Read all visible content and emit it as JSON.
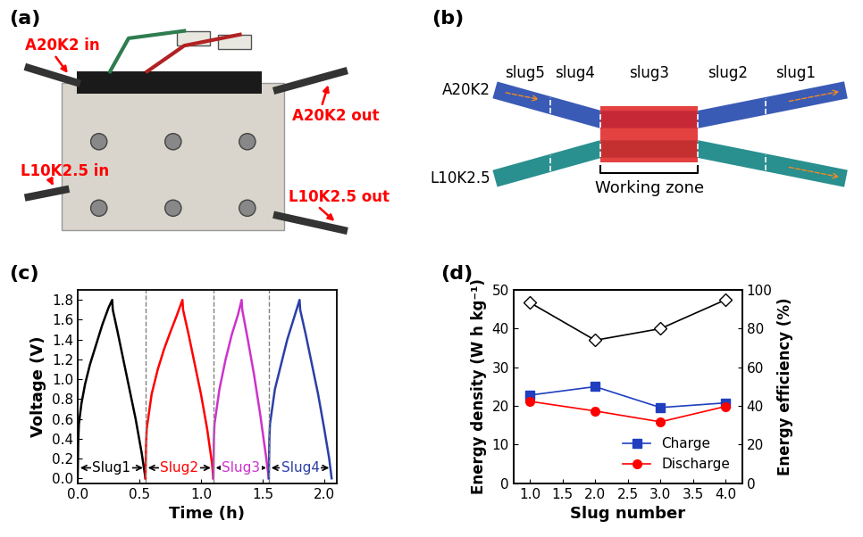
{
  "photo": {
    "panel": "(a)",
    "labels": [
      "A20K2 in",
      "A20K2 out",
      "L10K2.5 in",
      "L10K2.5 out"
    ]
  },
  "diagram": {
    "panel": "(b)",
    "channels": [
      "A20K2",
      "L10K2.5"
    ],
    "slugs": [
      "slug5",
      "slug4",
      "slug3",
      "slug2",
      "slug1"
    ],
    "zone": "Working zone"
  },
  "chart_data": [
    {
      "panel": "(c)",
      "type": "line",
      "x_label": "Time (h)",
      "y_label": "Voltage (V)",
      "xlim": [
        0,
        2.1
      ],
      "xticks": [
        {
          "value": 0,
          "label": "0.0"
        },
        0.5,
        {
          "value": 1,
          "label": "1.0"
        },
        1.5,
        {
          "value": 2,
          "label": "2.0"
        }
      ],
      "ylim": [
        -0.05,
        1.9
      ],
      "yticks": [
        {
          "value": 0,
          "label": "0.0"
        },
        0.2,
        0.4,
        0.6,
        0.8,
        {
          "value": 1,
          "label": "1.0"
        },
        1.2,
        1.4,
        1.6,
        1.8
      ],
      "series": [
        {
          "name": "Slug1",
          "color": "black",
          "span": [
            0,
            0.55
          ],
          "x": [
            0,
            0.005,
            0.01,
            0.03,
            0.06,
            0.1,
            0.15,
            0.2,
            0.25,
            0.28,
            0.285,
            0.32,
            0.37,
            0.42,
            0.47,
            0.52,
            0.55
          ],
          "values": [
            0,
            0.4,
            0.55,
            0.75,
            0.95,
            1.15,
            1.35,
            1.55,
            1.72,
            1.8,
            1.7,
            1.5,
            1.2,
            0.9,
            0.6,
            0.25,
            0
          ]
        },
        {
          "name": "Slug2",
          "color": "red",
          "span": [
            0.55,
            1.1
          ],
          "x": [
            0.55,
            0.555,
            0.56,
            0.6,
            0.65,
            0.7,
            0.75,
            0.8,
            0.85,
            0.855,
            0.9,
            0.95,
            1.0,
            1.05,
            1.09,
            1.1
          ],
          "values": [
            0,
            0.35,
            0.5,
            0.85,
            1.1,
            1.3,
            1.47,
            1.63,
            1.8,
            1.7,
            1.45,
            1.15,
            0.85,
            0.5,
            0.15,
            0
          ]
        },
        {
          "name": "Slug3",
          "color": "#cc33cc",
          "span": [
            1.1,
            1.55
          ],
          "x": [
            1.1,
            1.105,
            1.11,
            1.15,
            1.2,
            1.25,
            1.3,
            1.33,
            1.335,
            1.38,
            1.43,
            1.48,
            1.53,
            1.55
          ],
          "values": [
            0,
            0.4,
            0.55,
            0.9,
            1.2,
            1.45,
            1.65,
            1.8,
            1.7,
            1.4,
            1.05,
            0.65,
            0.2,
            0
          ]
        },
        {
          "name": "Slug4",
          "color": "#2b3fa8",
          "span": [
            1.55,
            2.06
          ],
          "x": [
            1.55,
            1.555,
            1.56,
            1.6,
            1.65,
            1.7,
            1.75,
            1.8,
            1.805,
            1.85,
            1.9,
            1.95,
            2.0,
            2.04,
            2.06
          ],
          "values": [
            0,
            0.4,
            0.55,
            0.9,
            1.15,
            1.4,
            1.6,
            1.8,
            1.7,
            1.45,
            1.15,
            0.85,
            0.5,
            0.2,
            0
          ]
        }
      ]
    },
    {
      "panel": "(d)",
      "type": "line",
      "x_label": "Slug number",
      "y_label": "Energy density (W h kg⁻¹)",
      "y2_label": "Energy efficiency (%)",
      "xlim": [
        0.75,
        4.25
      ],
      "xticks": [
        {
          "value": 1,
          "label": "1.0"
        },
        1.5,
        {
          "value": 2,
          "label": "2.0"
        },
        2.5,
        {
          "value": 3,
          "label": "3.0"
        },
        3.5,
        {
          "value": 4,
          "label": "4.0"
        }
      ],
      "ylim": [
        0,
        50
      ],
      "yticks": [
        0,
        10,
        20,
        30,
        40,
        50
      ],
      "y2lim": [
        0,
        100
      ],
      "y2ticks": [
        0,
        20,
        40,
        60,
        80,
        100
      ],
      "legend": "lower right",
      "x": [
        1,
        2,
        3,
        4
      ],
      "series": [
        {
          "name": "Charge",
          "color": "#1f3fbf",
          "marker": "square",
          "line_style": "solid",
          "values": [
            22.8,
            25.0,
            19.6,
            20.8
          ]
        },
        {
          "name": "Discharge",
          "color": "red",
          "marker": "circle",
          "line_style": "solid",
          "values": [
            21.2,
            18.7,
            15.9,
            19.9
          ]
        },
        {
          "color": "black",
          "marker": "diamond",
          "line_style": "solid",
          "axis": "y2",
          "values": [
            93.5,
            74,
            80,
            95
          ]
        }
      ]
    }
  ]
}
